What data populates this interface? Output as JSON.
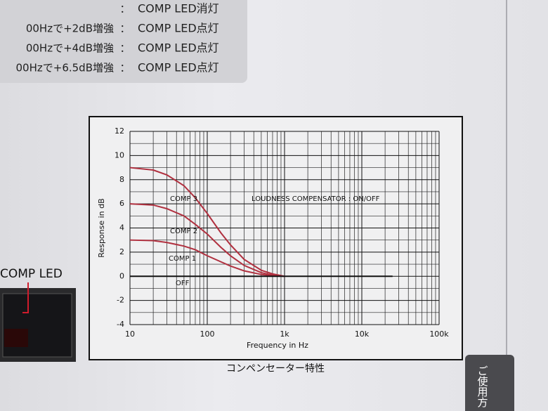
{
  "header": {
    "notes": [
      {
        "sep": "：",
        "led": "COMP LED消灯"
      },
      {
        "condition": "00Hzで+2dB増強",
        "sep": "：",
        "led": "COMP LED点灯"
      },
      {
        "condition": "00Hzで+4dB増強",
        "sep": "：",
        "led": "COMP LED点灯"
      },
      {
        "condition": "00Hzで+6.5dB増強",
        "sep": "：",
        "led": "COMP LED点灯"
      }
    ]
  },
  "device": {
    "label": "COMP LED"
  },
  "side_tab": "ご使用方",
  "chart_data": {
    "type": "line",
    "caption": "コンペンセーター特性",
    "annotation": "LOUDNESS COMPENSATOR : ON/OFF",
    "x_label": "Frequency in Hz",
    "y_label": "Response in dB",
    "x": [
      10,
      20,
      30,
      50,
      70,
      100,
      150,
      200,
      300,
      500,
      700,
      1000,
      25000
    ],
    "series": [
      {
        "name": "COMP 3",
        "color": "#b0303f",
        "values": [
          9,
          8.8,
          8.4,
          7.5,
          6.5,
          5.2,
          3.6,
          2.6,
          1.4,
          0.5,
          0.2,
          0,
          null
        ]
      },
      {
        "name": "COMP 2",
        "color": "#b0303f",
        "values": [
          6,
          5.9,
          5.6,
          5,
          4.3,
          3.5,
          2.4,
          1.7,
          0.9,
          0.3,
          0.1,
          0,
          null
        ]
      },
      {
        "name": "COMP 1",
        "color": "#b0303f",
        "values": [
          3,
          2.95,
          2.8,
          2.5,
          2.2,
          1.7,
          1.2,
          0.85,
          0.45,
          0.15,
          0.05,
          0,
          null
        ]
      },
      {
        "name": "OFF",
        "color": "#111111",
        "values": [
          0,
          0,
          0,
          0,
          0,
          0,
          0,
          0,
          0,
          0,
          0,
          0,
          0
        ]
      }
    ],
    "xlog": true,
    "xlim": [
      10,
      100000
    ],
    "xticks": [
      10,
      100,
      {
        "value": 1000,
        "label": "1k"
      },
      {
        "value": 10000,
        "label": "10k"
      },
      {
        "value": 100000,
        "label": "100k"
      }
    ],
    "ylim": [
      -4,
      12
    ],
    "yticks": [
      -4,
      -2,
      0,
      2,
      4,
      6,
      8,
      10,
      12
    ],
    "grid": true,
    "minor_grid": true
  }
}
